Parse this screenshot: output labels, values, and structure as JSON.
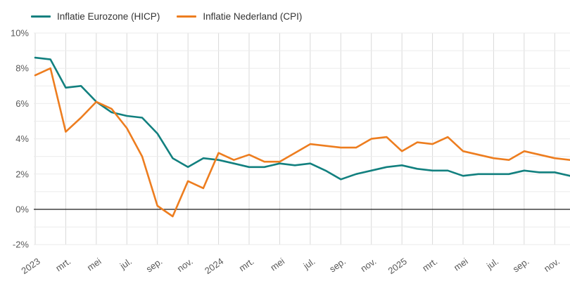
{
  "chart": {
    "legend": [
      {
        "label": "Inflatie Eurozone (HICP)",
        "color": "#12807f"
      },
      {
        "label": "Inflatie Nederland (CPI)",
        "color": "#ed7d1f"
      }
    ]
  },
  "colors": {
    "eurozone_line": "#12807f",
    "nederland_line": "#ed7d1f",
    "gridline_horizontal": "#ebebeb",
    "gridline_vertical": "#d9d9d9",
    "zero_line": "#1a1a1a",
    "axis_text": "#595959",
    "background": "#ffffff"
  },
  "chart_data": {
    "type": "line",
    "x": [
      "jan. 2023",
      "feb. 2023",
      "mrt. 2023",
      "apr. 2023",
      "mei 2023",
      "jun. 2023",
      "jul. 2023",
      "aug. 2023",
      "sep. 2023",
      "okt. 2023",
      "nov. 2023",
      "dec. 2023",
      "jan. 2024",
      "feb. 2024",
      "mrt. 2024",
      "apr. 2024",
      "mei 2024",
      "jun. 2024",
      "jul. 2024",
      "aug. 2024",
      "sep. 2024",
      "okt. 2024",
      "nov. 2024",
      "dec. 2024",
      "jan. 2025",
      "feb. 2025",
      "mrt. 2025",
      "apr. 2025",
      "mei 2025",
      "jun. 2025",
      "jul. 2025",
      "aug. 2025",
      "sep. 2025",
      "okt. 2025",
      "nov. 2025",
      "dec. 2025"
    ],
    "x_tick_labels": [
      "2023",
      "mrt.",
      "mei",
      "jul.",
      "sep.",
      "nov.",
      "2024",
      "mrt.",
      "mei",
      "jul.",
      "sep.",
      "nov.",
      "2025",
      "mrt.",
      "mei",
      "jul.",
      "sep.",
      "nov."
    ],
    "x_tick_every": 2,
    "series": [
      {
        "name": "Inflatie Eurozone (HICP)",
        "color": "#12807f",
        "values": [
          8.6,
          8.5,
          6.9,
          7.0,
          6.1,
          5.5,
          5.3,
          5.2,
          4.3,
          2.9,
          2.4,
          2.9,
          2.8,
          2.6,
          2.4,
          2.4,
          2.6,
          2.5,
          2.6,
          2.2,
          1.7,
          2.0,
          2.2,
          2.4,
          2.5,
          2.3,
          2.2,
          2.2,
          1.9,
          2.0,
          2.0,
          2.0,
          2.2,
          2.1,
          2.1,
          1.9
        ]
      },
      {
        "name": "Inflatie Nederland (CPI)",
        "color": "#ed7d1f",
        "values": [
          7.6,
          8.0,
          4.4,
          5.2,
          6.1,
          5.7,
          4.6,
          3.0,
          0.2,
          -0.4,
          1.6,
          1.2,
          3.2,
          2.8,
          3.1,
          2.7,
          2.7,
          3.2,
          3.7,
          3.6,
          3.5,
          3.5,
          4.0,
          4.1,
          3.3,
          3.8,
          3.7,
          4.1,
          3.3,
          3.1,
          2.9,
          2.8,
          3.3,
          3.1,
          2.9,
          2.8
        ]
      }
    ],
    "title": "",
    "xlabel": "",
    "ylabel": "",
    "y_ticks_labeled": [
      10,
      8,
      6,
      4,
      2,
      0,
      -2
    ],
    "y_tick_suffix": "%",
    "y_gridline_step": 1,
    "ylim": [
      -2,
      10
    ],
    "zero_line": true,
    "grid": true,
    "legend_position": "top-left"
  }
}
